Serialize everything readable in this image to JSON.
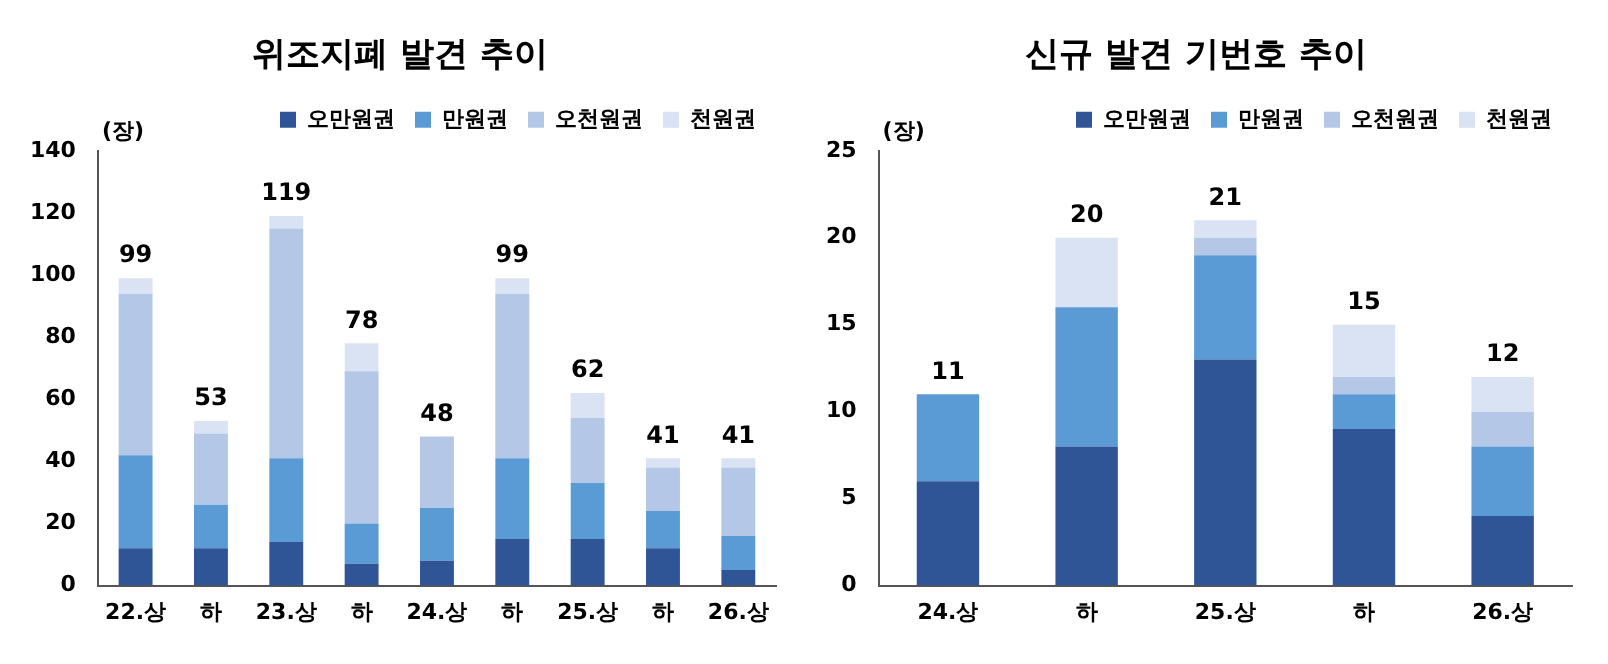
{
  "chart_data": [
    {
      "type": "bar",
      "title": "위조지폐 발견 추이",
      "ylabel": "(장)",
      "stacked": true,
      "legend": "top",
      "grid": false,
      "categories": [
        "22.상",
        "하",
        "23.상",
        "하",
        "24.상",
        "하",
        "25.상",
        "하",
        "26.상"
      ],
      "series": [
        {
          "name": "오만원권",
          "color": "#2f5597",
          "values": [
            12,
            12,
            14,
            7,
            8,
            15,
            15,
            12,
            5
          ]
        },
        {
          "name": "만원권",
          "color": "#5b9bd5",
          "values": [
            30,
            14,
            27,
            13,
            17,
            26,
            18,
            12,
            11
          ]
        },
        {
          "name": "오천원권",
          "color": "#b4c7e7",
          "values": [
            52,
            23,
            74,
            49,
            23,
            53,
            21,
            14,
            22
          ]
        },
        {
          "name": "천원권",
          "color": "#dae3f3",
          "values": [
            5,
            4,
            4,
            9,
            0,
            5,
            8,
            3,
            3
          ]
        }
      ],
      "ylim": [
        0,
        140
      ],
      "yticks": [
        0,
        20,
        40,
        60,
        80,
        100,
        120,
        140
      ],
      "totals": [
        "99",
        "53",
        "119",
        "78",
        "48",
        "99",
        "62",
        "41",
        "41"
      ]
    },
    {
      "type": "bar",
      "title": "신규 발견 기번호 추이",
      "ylabel": "(장)",
      "stacked": true,
      "legend": "top",
      "grid": false,
      "categories": [
        "24.상",
        "하",
        "25.상",
        "하",
        "26.상"
      ],
      "series": [
        {
          "name": "오만원권",
          "color": "#2f5597",
          "values": [
            6,
            8,
            13,
            9,
            4
          ]
        },
        {
          "name": "만원권",
          "color": "#5b9bd5",
          "values": [
            5,
            8,
            6,
            2,
            4
          ]
        },
        {
          "name": "오천원권",
          "color": "#b4c7e7",
          "values": [
            0,
            0,
            1,
            1,
            2
          ]
        },
        {
          "name": "천원권",
          "color": "#dae3f3",
          "values": [
            0,
            4,
            1,
            3,
            2
          ]
        }
      ],
      "ylim": [
        0,
        25
      ],
      "yticks": [
        0,
        5,
        10,
        15,
        20,
        25
      ],
      "totals": [
        "11",
        "20",
        "21",
        "15",
        "12"
      ]
    }
  ]
}
